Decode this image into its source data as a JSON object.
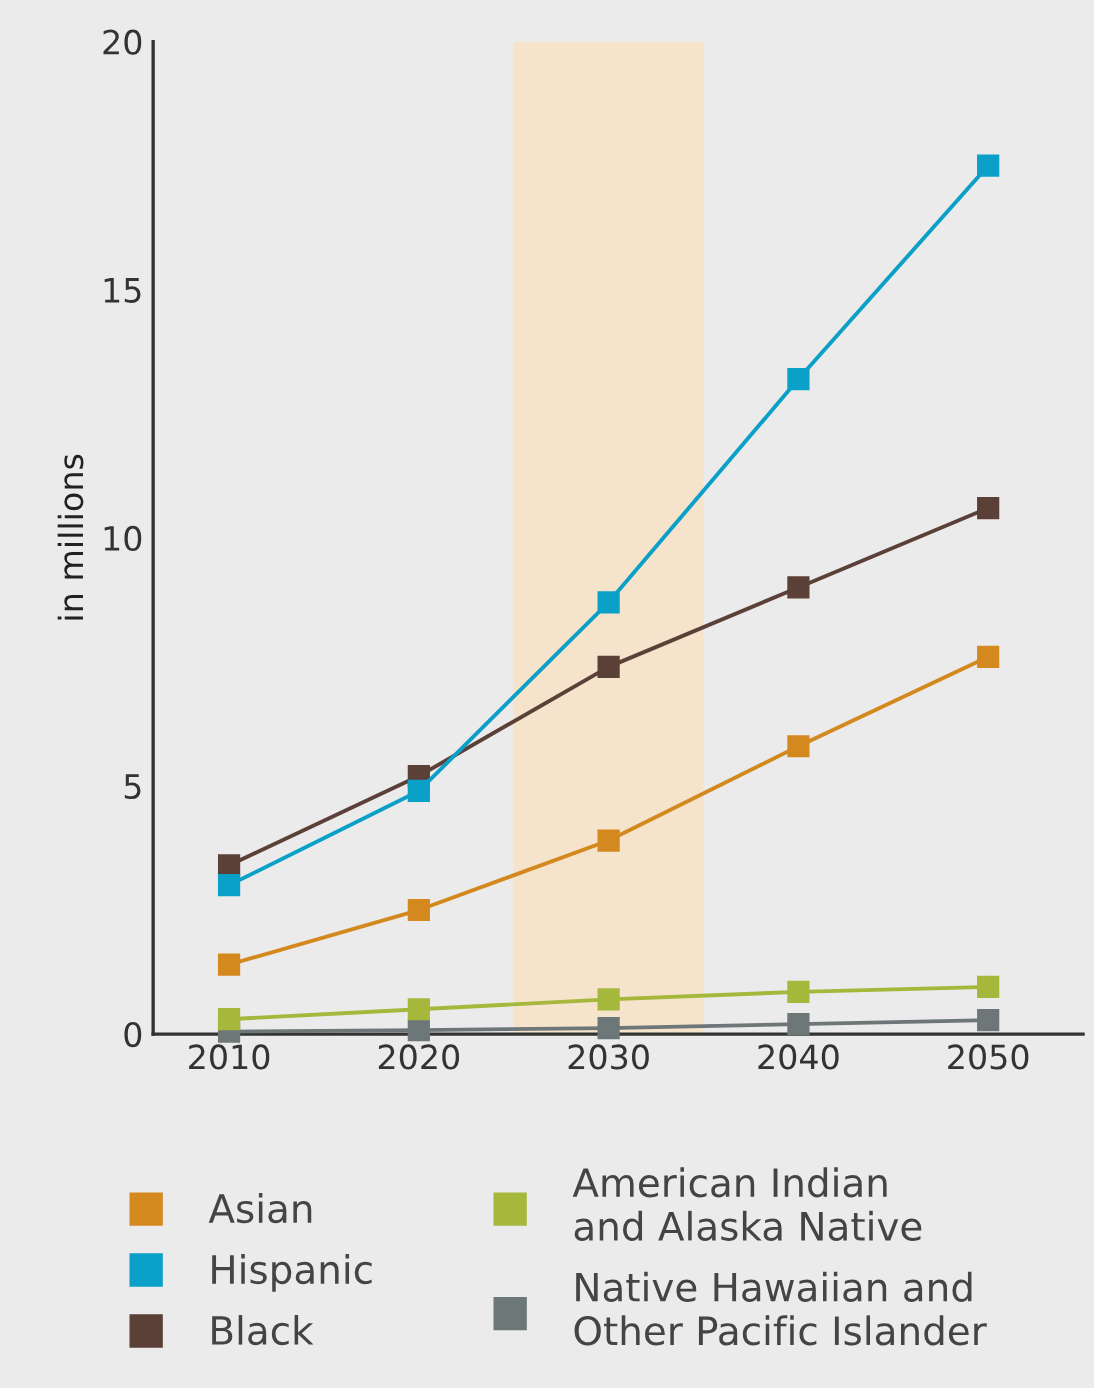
{
  "chart_data": {
    "type": "line",
    "ylabel": "in millions",
    "x": [
      2010,
      2020,
      2030,
      2040,
      2050
    ],
    "xlim": [
      2006,
      2055
    ],
    "xticks": [
      2010,
      2020,
      2030,
      2040,
      2050
    ],
    "ylim": [
      0,
      20
    ],
    "yticks": [
      0,
      5,
      10,
      15,
      20
    ],
    "series": [
      {
        "name": "Asian",
        "color": "#d4891f",
        "values": [
          1.4,
          2.5,
          3.9,
          5.8,
          7.6
        ]
      },
      {
        "name": "Hispanic",
        "color": "#0aa0c8",
        "values": [
          3.0,
          4.9,
          8.7,
          13.2,
          17.5
        ]
      },
      {
        "name": "Black",
        "color": "#5b4037",
        "values": [
          3.4,
          5.2,
          7.4,
          9.0,
          10.6
        ]
      },
      {
        "name": "American Indian\nand Alaska Native",
        "color": "#a5b83c",
        "values": [
          0.3,
          0.5,
          0.7,
          0.85,
          0.95
        ]
      },
      {
        "name": "Native Hawaiian and\nOther Pacific Islander",
        "color": "#6d7778",
        "values": [
          0.05,
          0.08,
          0.12,
          0.2,
          0.28
        ]
      }
    ],
    "bands": [
      {
        "axis": "x",
        "from": 2025,
        "to": 2035,
        "color": "#f5e3cc"
      }
    ],
    "marker": "square",
    "line_style": "solid",
    "grid": false,
    "legend": "bottom"
  }
}
